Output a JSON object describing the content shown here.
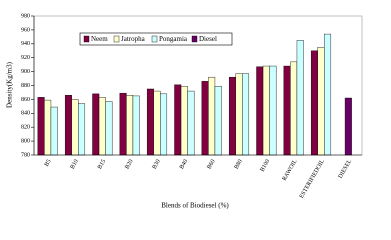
{
  "chart_data": {
    "type": "bar",
    "y_label": "Density(Kg/m3)",
    "x_label": "Blends of Biodiesel (%)",
    "categories": [
      "B5",
      "B10",
      "B15",
      "B20",
      "B30",
      "B40",
      "B60",
      "B80",
      "B100",
      "RAWOIL",
      "ESTERIFIEDOIL",
      "DIESEL"
    ],
    "series": [
      {
        "name": "Neem",
        "color": "#800040",
        "values": [
          863,
          866,
          868,
          869,
          875,
          881,
          886,
          892,
          907,
          908,
          930,
          null
        ]
      },
      {
        "name": "Jatropha",
        "color": "#ffffcc",
        "values": [
          859,
          860,
          863,
          866,
          872,
          879,
          892,
          897,
          908,
          914,
          935,
          null
        ]
      },
      {
        "name": "Pongamia",
        "color": "#ccffff",
        "values": [
          849,
          854,
          857,
          865,
          868,
          872,
          879,
          897,
          908,
          945,
          954,
          null
        ]
      },
      {
        "name": "Diesel",
        "color": "#660066",
        "values": [
          null,
          null,
          null,
          null,
          null,
          null,
          null,
          null,
          null,
          null,
          null,
          862
        ]
      }
    ],
    "ylim": [
      780,
      980
    ],
    "yticks": [
      780,
      800,
      820,
      840,
      860,
      880,
      900,
      920,
      940,
      960,
      980
    ],
    "legend": "top"
  }
}
